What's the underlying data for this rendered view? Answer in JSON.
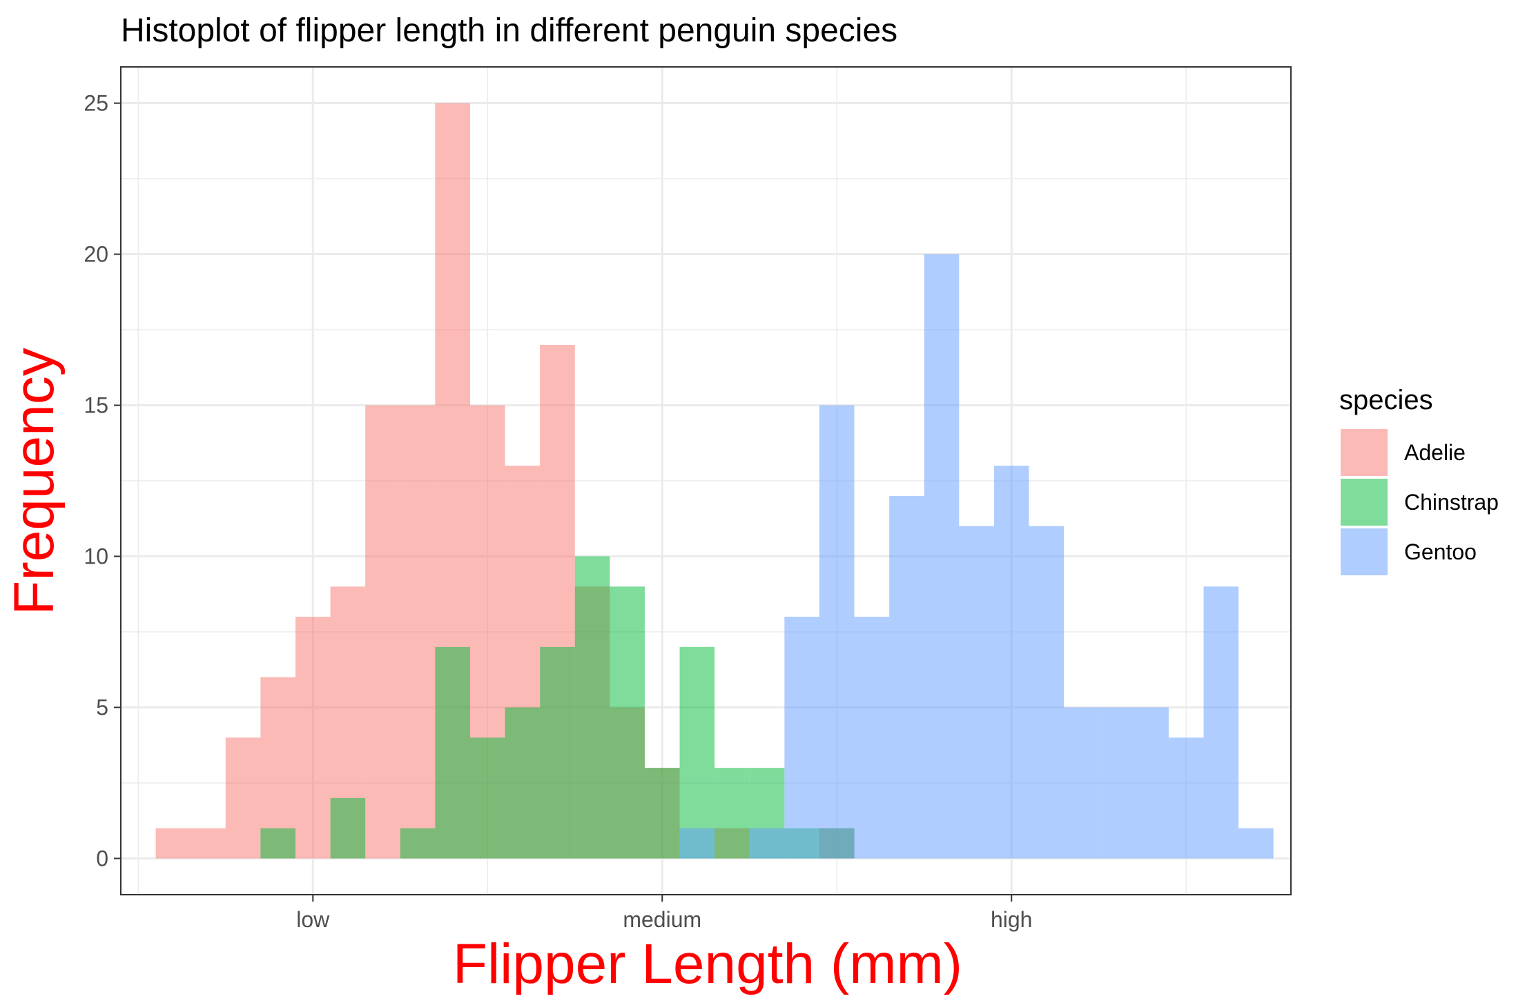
{
  "chart_data": {
    "type": "bar",
    "title": "Histoplot of flipper length in different penguin species",
    "xlabel": "Flipper Length (mm)",
    "ylabel": "Frequency",
    "x_ticks": [
      {
        "label": "low",
        "value": 180
      },
      {
        "label": "medium",
        "value": 200
      },
      {
        "label": "high",
        "value": 220
      }
    ],
    "xlim": [
      169,
      236
    ],
    "ylim": [
      -1.2,
      26.2
    ],
    "y_ticks": [
      0,
      5,
      10,
      15,
      20,
      25
    ],
    "bin_width": 2,
    "grid": true,
    "legend_title": "species",
    "legend_position": "right",
    "series": [
      {
        "name": "Adelie",
        "color": "#F8766D",
        "bin_centers": [
          172,
          174,
          176,
          178,
          180,
          182,
          184,
          186,
          188,
          190,
          192,
          194,
          196,
          198,
          200,
          202,
          204,
          206,
          208,
          210
        ],
        "values": [
          1,
          1,
          4,
          6,
          8,
          9,
          15,
          15,
          25,
          15,
          13,
          17,
          9,
          5,
          3,
          0,
          1,
          0,
          0,
          1
        ]
      },
      {
        "name": "Chinstrap",
        "color": "#00BA38",
        "bin_centers": [
          178,
          182,
          186,
          188,
          190,
          192,
          194,
          196,
          198,
          200,
          202,
          204,
          206,
          208,
          210
        ],
        "values": [
          1,
          2,
          1,
          7,
          4,
          5,
          7,
          10,
          9,
          3,
          7,
          3,
          3,
          1,
          1
        ]
      },
      {
        "name": "Gentoo",
        "color": "#619CFF",
        "bin_centers": [
          202,
          206,
          208,
          210,
          212,
          214,
          216,
          218,
          220,
          222,
          224,
          226,
          228,
          230,
          232,
          234
        ],
        "values": [
          1,
          1,
          8,
          15,
          8,
          12,
          20,
          11,
          13,
          11,
          5,
          5,
          5,
          4,
          9,
          1
        ]
      }
    ]
  }
}
